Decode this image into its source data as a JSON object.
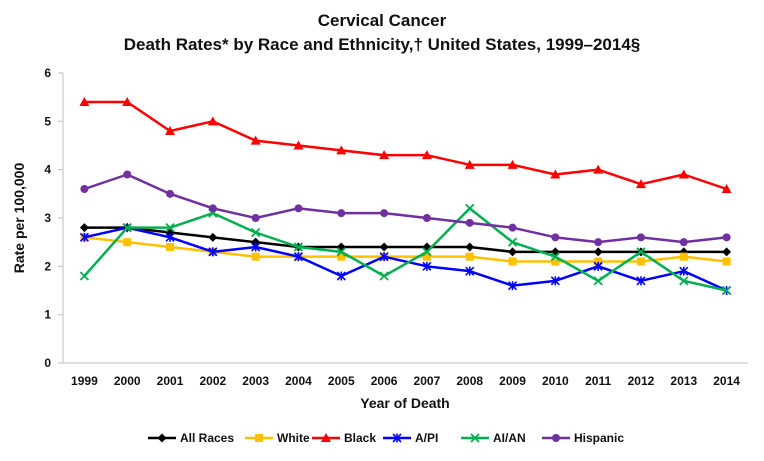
{
  "chart_data": {
    "type": "line",
    "title": "Cervical Cancer",
    "subtitle": "Death Rates* by Race and Ethnicity,† United States, 1999–2014§",
    "xlabel": "Year of Death",
    "ylabel": "Rate per 100,000",
    "ylim": [
      0,
      6
    ],
    "yticks": [
      "0",
      "1",
      "2",
      "3",
      "4",
      "5",
      "6"
    ],
    "grid": false,
    "legend_position": "bottom",
    "x": [
      "1999",
      "2000",
      "2001",
      "2002",
      "2003",
      "2004",
      "2005",
      "2006",
      "2007",
      "2008",
      "2009",
      "2010",
      "2011",
      "2012",
      "2013",
      "2014"
    ],
    "series": [
      {
        "name": "All Races",
        "color": "#000000",
        "marker": "diamond",
        "values": [
          2.8,
          2.8,
          2.7,
          2.6,
          2.5,
          2.4,
          2.4,
          2.4,
          2.4,
          2.4,
          2.3,
          2.3,
          2.3,
          2.3,
          2.3,
          2.3
        ]
      },
      {
        "name": "White",
        "color": "#FFC000",
        "marker": "square",
        "values": [
          2.6,
          2.5,
          2.4,
          2.3,
          2.2,
          2.2,
          2.2,
          2.2,
          2.2,
          2.2,
          2.1,
          2.1,
          2.1,
          2.1,
          2.2,
          2.1
        ]
      },
      {
        "name": "Black",
        "color": "#FF0000",
        "marker": "triangle",
        "values": [
          5.4,
          5.4,
          4.8,
          5.0,
          4.6,
          4.5,
          4.4,
          4.3,
          4.3,
          4.1,
          4.1,
          3.9,
          4.0,
          3.7,
          3.9,
          3.6
        ]
      },
      {
        "name": "A/PI",
        "color": "#0000FF",
        "marker": "star",
        "values": [
          2.6,
          2.8,
          2.6,
          2.3,
          2.4,
          2.2,
          1.8,
          2.2,
          2.0,
          1.9,
          1.6,
          1.7,
          2.0,
          1.7,
          1.9,
          1.5
        ]
      },
      {
        "name": "AI/AN",
        "color": "#00B050",
        "marker": "x",
        "values": [
          1.8,
          2.8,
          2.8,
          3.1,
          2.7,
          2.4,
          2.3,
          1.8,
          2.3,
          3.2,
          2.5,
          2.2,
          1.7,
          2.3,
          1.7,
          1.5
        ]
      },
      {
        "name": "Hispanic",
        "color": "#7030A0",
        "marker": "circle",
        "values": [
          3.6,
          3.9,
          3.5,
          3.2,
          3.0,
          3.2,
          3.1,
          3.1,
          3.0,
          2.9,
          2.8,
          2.6,
          2.5,
          2.6,
          2.5,
          2.6
        ]
      }
    ]
  }
}
